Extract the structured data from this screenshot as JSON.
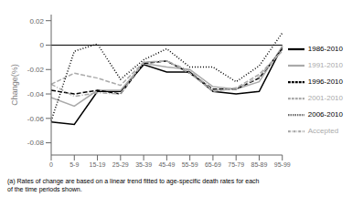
{
  "chart_data": {
    "type": "line",
    "ylabel": "Change(%)",
    "categories": [
      "0",
      "5-9",
      "15-19",
      "25-29",
      "35-39",
      "45-49",
      "55-59",
      "65-69",
      "75-79",
      "85-89",
      "95-99"
    ],
    "series": [
      {
        "name": "1986-2010",
        "color": "#000000",
        "line_style": "solid",
        "values": [
          -0.063,
          -0.065,
          -0.038,
          -0.038,
          -0.016,
          -0.022,
          -0.022,
          -0.038,
          -0.04,
          -0.038,
          -0.001
        ]
      },
      {
        "name": "1991-2010",
        "color": "#aaaaaa",
        "line_style": "solid",
        "values": [
          -0.043,
          -0.05,
          -0.037,
          -0.037,
          -0.015,
          -0.018,
          -0.02,
          -0.034,
          -0.036,
          -0.03,
          -0.001
        ]
      },
      {
        "name": "1996-2010",
        "color": "#000000",
        "line_style": "dashed",
        "values": [
          -0.037,
          -0.04,
          -0.037,
          -0.04,
          -0.015,
          -0.013,
          -0.023,
          -0.036,
          -0.036,
          -0.027,
          -0.003
        ]
      },
      {
        "name": "2001-2010",
        "color": "#aaaaaa",
        "line_style": "dashed",
        "values": [
          -0.032,
          -0.023,
          -0.027,
          -0.033,
          -0.014,
          -0.013,
          -0.023,
          -0.038,
          -0.035,
          -0.024,
          -0.005
        ]
      },
      {
        "name": "2006-2010",
        "color": "#000000",
        "line_style": "dotted",
        "values": [
          -0.062,
          -0.005,
          0.001,
          -0.028,
          -0.012,
          -0.003,
          -0.018,
          -0.018,
          -0.03,
          -0.017,
          0.01
        ]
      },
      {
        "name": "Accepted",
        "color": "#aaaaaa",
        "line_style": "dashdot",
        "values": [
          -0.032,
          -0.042,
          -0.039,
          -0.04,
          -0.014,
          -0.013,
          -0.021,
          -0.037,
          -0.036,
          -0.026,
          -0.004
        ]
      }
    ],
    "ylim": [
      -0.09,
      0.025
    ],
    "yticks": [
      0.02,
      0.0,
      -0.02,
      -0.04,
      -0.06,
      -0.08
    ],
    "hline": 0,
    "footnote": "(a) Rates of change are based on a linear trend fitted to age-specific death rates for each\nof the time periods shown.",
    "grid": false,
    "legend": "right"
  }
}
